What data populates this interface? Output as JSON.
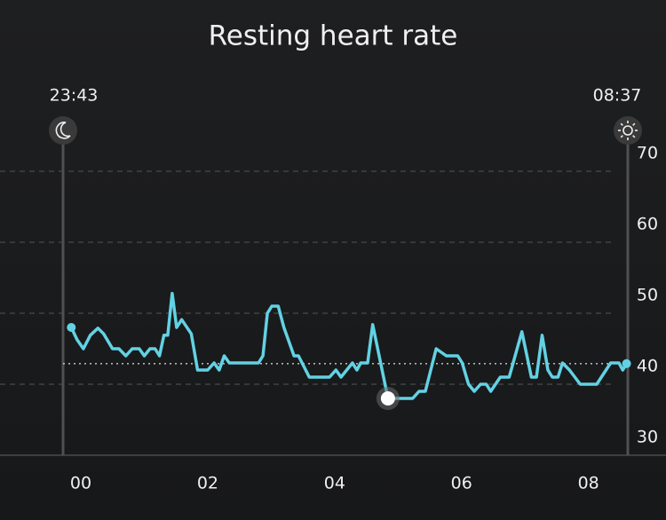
{
  "chart_data": {
    "type": "line",
    "title": "Resting heart rate",
    "start_label": "23:43",
    "end_label": "08:37",
    "color": "#62d2e3",
    "average": 42.9,
    "xlim": [
      -0.28,
      8.62
    ],
    "xticks": [
      {
        "value": 0,
        "label": "00"
      },
      {
        "value": 2,
        "label": "02"
      },
      {
        "value": 4,
        "label": "04"
      },
      {
        "value": 6,
        "label": "06"
      },
      {
        "value": 8,
        "label": "08"
      }
    ],
    "ylim": [
      30,
      70
    ],
    "yticks": [
      30,
      40,
      50,
      60,
      70
    ],
    "grid": true,
    "x": [
      -0.15,
      -0.06,
      0.04,
      0.15,
      0.27,
      0.36,
      0.5,
      0.6,
      0.71,
      0.81,
      0.92,
      1.0,
      1.09,
      1.17,
      1.24,
      1.31,
      1.37,
      1.44,
      1.51,
      1.59,
      1.74,
      1.84,
      2.0,
      2.1,
      2.18,
      2.26,
      2.34,
      2.8,
      2.87,
      2.94,
      3.01,
      3.11,
      3.2,
      3.36,
      3.43,
      3.6,
      3.92,
      4.02,
      4.1,
      4.28,
      4.35,
      4.41,
      4.52,
      4.6,
      4.84,
      4.94,
      5.23,
      5.33,
      5.43,
      5.6,
      5.76,
      5.94,
      6.01,
      6.11,
      6.2,
      6.3,
      6.39,
      6.46,
      6.61,
      6.75,
      6.95,
      7.1,
      7.18,
      7.27,
      7.36,
      7.43,
      7.52,
      7.59,
      7.7,
      7.87,
      8.06,
      8.13,
      8.35,
      8.48,
      8.54,
      8.6
    ],
    "values": [
      48,
      46.3,
      45,
      46.9,
      47.9,
      47.1,
      45,
      45,
      44,
      45,
      45,
      44,
      45,
      45,
      44,
      46.9,
      46.9,
      52.8,
      48,
      49.1,
      47.1,
      42,
      42,
      43,
      42,
      44,
      43,
      43,
      44,
      50,
      51,
      51,
      48,
      44,
      44,
      41,
      41,
      42,
      41,
      43,
      42,
      43,
      43,
      48.4,
      38,
      38,
      38,
      39,
      39,
      45,
      44,
      44,
      43,
      40,
      39,
      40,
      40,
      39,
      41,
      41,
      47.4,
      41,
      41,
      46.9,
      42,
      41,
      41,
      43,
      42,
      40,
      40,
      40,
      43,
      43,
      42,
      42.9
    ]
  }
}
